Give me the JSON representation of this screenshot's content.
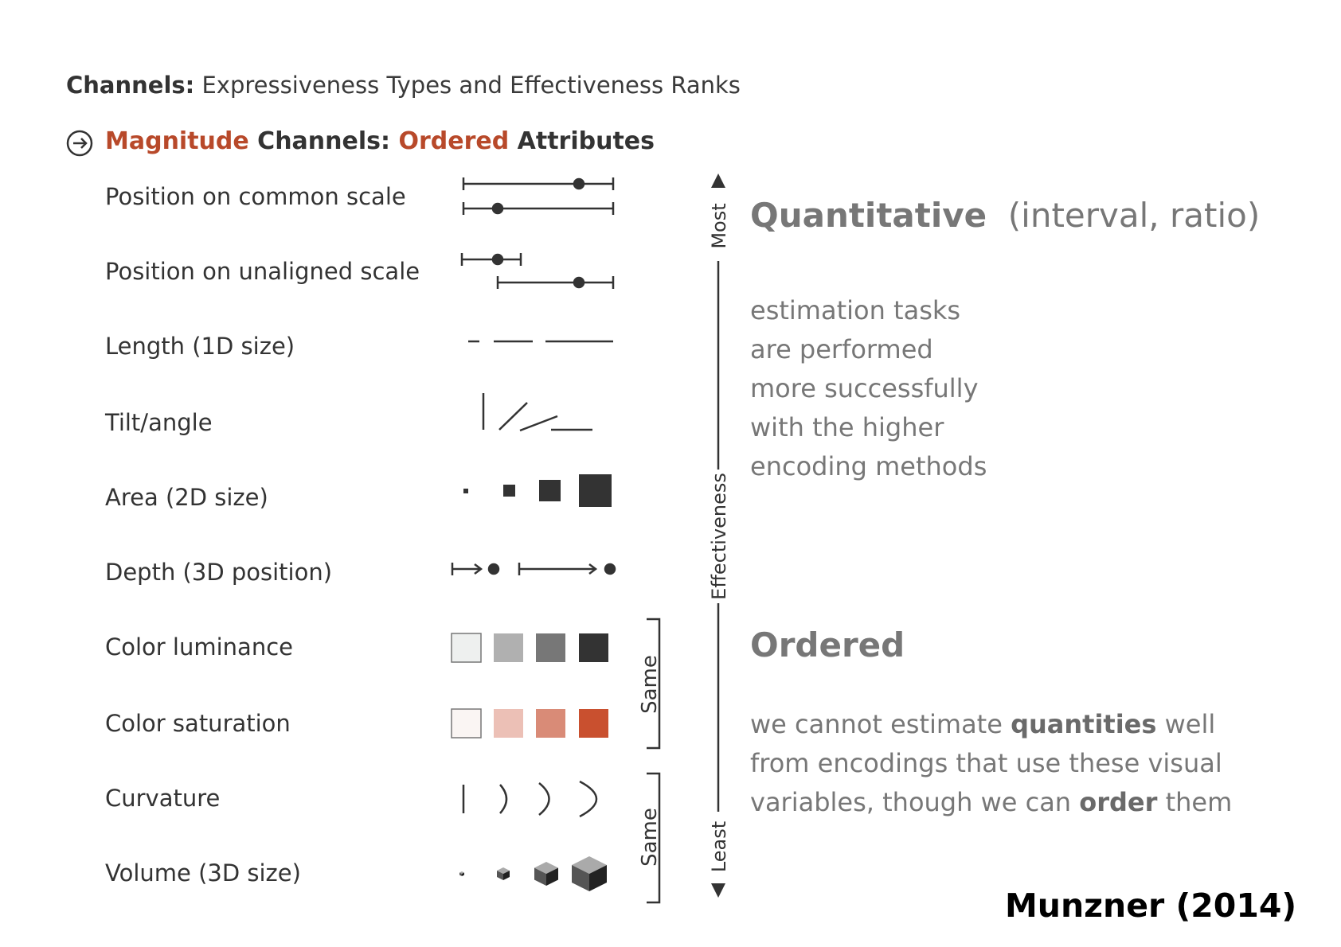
{
  "title": {
    "bold": "Channels:",
    "rest": "Expressiveness Types and Effectiveness Ranks"
  },
  "subheading": {
    "part1": "Magnitude",
    "part2": " Channels: ",
    "part3": "Ordered",
    "part4": " Attributes"
  },
  "channels": [
    "Position on common scale",
    "Position on unaligned scale",
    "Length (1D size)",
    "Tilt/angle",
    "Area (2D size)",
    "Depth (3D position)",
    "Color luminance",
    "Color saturation",
    "Curvature",
    "Volume (3D size)"
  ],
  "axis": {
    "top": "Most",
    "middle": "Effectiveness",
    "bottom": "Least"
  },
  "bracket_label": "Same",
  "quantitative": {
    "title": "Quantitative",
    "subtitle": "(interval, ratio)",
    "lines": [
      "estimation tasks",
      "are performed",
      "more successfully",
      "with the higher",
      "encoding methods"
    ]
  },
  "ordered": {
    "title": "Ordered",
    "line1_a": "we cannot estimate ",
    "line1_b": "quantities",
    "line1_c": " well",
    "line2": "from encodings that use these visual",
    "line3_a": "variables, though we can ",
    "line3_b": "order",
    "line3_c": " them"
  },
  "citation": "Munzner (2014)",
  "colors": {
    "accent": "#b8492a",
    "luminance": [
      "#eef0ef",
      "#b0b0b0",
      "#777777",
      "#333333"
    ],
    "saturation": [
      "#faf5f3",
      "#ecc0b6",
      "#d98b77",
      "#c9502f"
    ]
  }
}
